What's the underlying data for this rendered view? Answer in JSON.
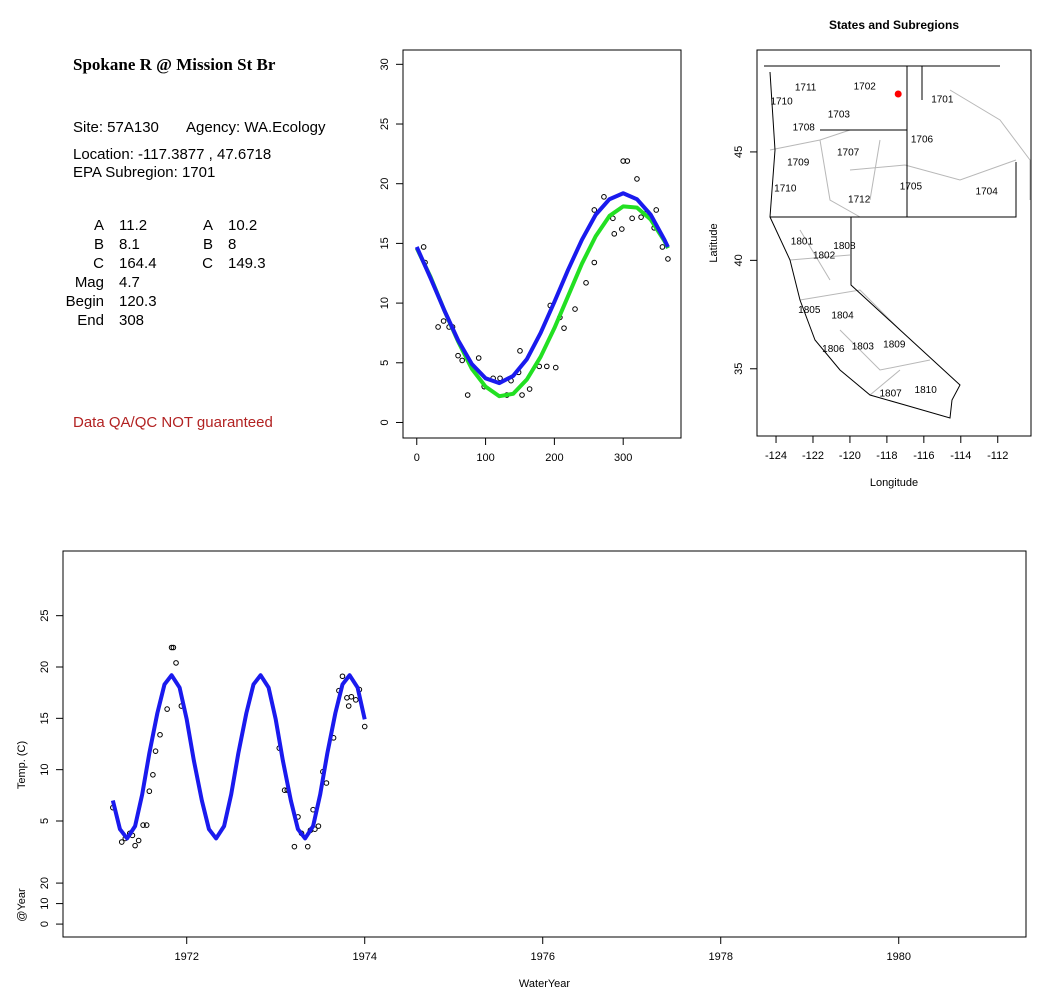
{
  "info": {
    "title": "Spokane R @ Mission St Br",
    "site": "Site: 57A130",
    "agency": "Agency: WA.Ecology",
    "location": "Location: -117.3877 , 47.6718",
    "subregion": "EPA Subregion: 1701",
    "params": [
      [
        "A",
        "11.2",
        "A",
        "10.2"
      ],
      [
        "B",
        "8.1",
        "B",
        "8"
      ],
      [
        "C",
        "164.4",
        "C",
        "149.3"
      ],
      [
        "Mag",
        "4.7"
      ],
      [
        "Begin",
        "120.3"
      ],
      [
        "End",
        "308"
      ]
    ],
    "note": "Data QA/QC NOT guaranteed"
  },
  "chart_data": [
    {
      "type": "scatter",
      "xlim": [
        -20,
        384
      ],
      "ylim": [
        -1.3,
        31.2
      ],
      "xticks": [
        0,
        100,
        200,
        300
      ],
      "yticks": [
        0,
        5,
        10,
        15,
        20,
        25,
        30
      ],
      "series": [
        {
          "kind": "points",
          "color": "#000000",
          "x": [
            10,
            12,
            31,
            39,
            47,
            52,
            60,
            66,
            74,
            90,
            98,
            111,
            121,
            131,
            137,
            148,
            150,
            153,
            164,
            178,
            189,
            194,
            202,
            208,
            214,
            230,
            246,
            258,
            258,
            272,
            285,
            287,
            298,
            300,
            306,
            313,
            320,
            326,
            335,
            345,
            348,
            357,
            365
          ],
          "values": [
            14.7,
            13.4,
            8.0,
            8.5,
            8.0,
            8.0,
            5.6,
            5.2,
            2.3,
            5.4,
            3.0,
            3.7,
            3.7,
            2.3,
            3.5,
            4.2,
            6.0,
            2.3,
            2.8,
            4.7,
            4.7,
            9.8,
            4.6,
            8.8,
            7.9,
            9.5,
            11.7,
            13.4,
            17.8,
            18.9,
            17.1,
            15.8,
            16.2,
            21.9,
            21.9,
            17.1,
            20.4,
            17.2,
            17.6,
            16.3,
            17.8,
            14.7,
            13.7
          ]
        },
        {
          "kind": "line",
          "color": "#22e022",
          "x": [
            0,
            20,
            40,
            60,
            80,
            100,
            120,
            140,
            160,
            180,
            200,
            220,
            240,
            260,
            280,
            300,
            320,
            340,
            360,
            365
          ],
          "values": [
            14.6,
            12.2,
            9.4,
            6.8,
            4.5,
            3.0,
            2.2,
            2.4,
            3.6,
            5.5,
            7.9,
            10.6,
            13.3,
            15.6,
            17.3,
            18.1,
            18.0,
            17.0,
            15.2,
            14.6
          ]
        },
        {
          "kind": "line",
          "color": "#1a1aee",
          "x": [
            0,
            20,
            40,
            60,
            80,
            100,
            120,
            140,
            160,
            180,
            200,
            220,
            240,
            260,
            280,
            300,
            320,
            340,
            360,
            365
          ],
          "values": [
            14.7,
            12.1,
            9.4,
            6.9,
            4.9,
            3.7,
            3.3,
            3.9,
            5.3,
            7.5,
            10.1,
            12.8,
            15.3,
            17.4,
            18.7,
            19.2,
            18.7,
            17.4,
            15.3,
            14.7
          ]
        }
      ]
    },
    {
      "type": "map",
      "title": "States and Subregions",
      "xlabel": "Longitude",
      "ylabel": "Latitude",
      "xlim": [
        -125.03,
        -110.2
      ],
      "ylim": [
        31.9,
        49.7
      ],
      "xticks": [
        -124,
        -122,
        -120,
        -118,
        -116,
        -114,
        -112
      ],
      "yticks": [
        35,
        40,
        45
      ],
      "regions": {
        "labels": [
          "1702",
          "1711",
          "1710",
          "1701",
          "1703",
          "1708",
          "1706",
          "1707",
          "1709",
          "1710",
          "1705",
          "1704",
          "1712",
          "1801",
          "1808",
          "1802",
          "1805",
          "1804",
          "1806",
          "1803",
          "1809",
          "1807",
          "1810"
        ],
        "x": [
          -119.2,
          -122.4,
          -123.7,
          -115.0,
          -120.6,
          -122.5,
          -116.1,
          -120.1,
          -122.8,
          -123.5,
          -116.7,
          -112.6,
          -119.5,
          -122.6,
          -120.3,
          -121.4,
          -122.2,
          -120.4,
          -120.9,
          -119.3,
          -117.6,
          -117.8,
          -115.9
        ],
        "y": [
          48.0,
          47.95,
          47.3,
          47.4,
          46.7,
          46.1,
          45.55,
          44.95,
          44.5,
          43.3,
          43.4,
          43.15,
          42.8,
          40.85,
          40.65,
          40.2,
          37.7,
          37.45,
          35.9,
          36.0,
          36.1,
          33.85,
          34.0
        ]
      },
      "site": {
        "x": -117.3877,
        "y": 47.6718,
        "color": "#ff0000"
      }
    },
    {
      "type": "line",
      "xlabel": "WaterYear",
      "ylabel": "Temp. (C)",
      "y2label": "@Year",
      "xlim": [
        1970.61,
        1981.43
      ],
      "ylim": [
        -6.3,
        31.3
      ],
      "y2lim": [
        -6.3,
        182
      ],
      "xticks": [
        1972,
        1974,
        1976,
        1978,
        1980
      ],
      "yticks": [
        5,
        10,
        15,
        20,
        25
      ],
      "y2ticks": [
        0,
        10,
        20
      ],
      "series": [
        {
          "kind": "points",
          "color": "#000000",
          "x": [
            1971.17,
            1971.27,
            1971.31,
            1971.36,
            1971.39,
            1971.42,
            1971.46,
            1971.51,
            1971.55,
            1971.58,
            1971.62,
            1971.65,
            1971.7,
            1971.78,
            1971.83,
            1971.85,
            1971.88,
            1971.94,
            1973.04,
            1973.1,
            1973.13,
            1973.21,
            1973.25,
            1973.29,
            1973.36,
            1973.39,
            1973.42,
            1973.44,
            1973.48,
            1973.53,
            1973.57,
            1973.65,
            1973.71,
            1973.75,
            1973.8,
            1973.82,
            1973.85,
            1973.9,
            1973.94,
            1974.0
          ],
          "values": [
            6.3,
            2.95,
            3.3,
            3.8,
            3.6,
            2.6,
            3.1,
            4.6,
            4.6,
            7.9,
            9.5,
            11.8,
            13.4,
            15.9,
            21.9,
            21.9,
            20.4,
            16.2,
            12.1,
            8.0,
            8.0,
            2.5,
            5.4,
            3.8,
            2.5,
            4.1,
            6.1,
            4.2,
            4.5,
            9.8,
            8.7,
            13.1,
            17.7,
            19.1,
            17.0,
            16.2,
            17.1,
            16.8,
            17.8,
            14.2
          ]
        },
        {
          "kind": "line",
          "color": "#1a1aee",
          "x": [
            1971.17,
            1971.25,
            1971.33,
            1971.42,
            1971.5,
            1971.58,
            1971.67,
            1971.75,
            1971.83,
            1971.92,
            1972.0,
            1972.08,
            1972.17,
            1972.25,
            1972.33,
            1972.42,
            1972.5,
            1972.58,
            1972.67,
            1972.75,
            1972.83,
            1972.92,
            1973.0,
            1973.08,
            1973.17,
            1973.25,
            1973.33,
            1973.42,
            1973.5,
            1973.58,
            1973.67,
            1973.75,
            1973.83,
            1973.92,
            1974.0
          ],
          "values": [
            7.0,
            4.2,
            3.3,
            4.5,
            7.6,
            11.6,
            15.5,
            18.3,
            19.2,
            18.0,
            14.9,
            10.9,
            7.0,
            4.2,
            3.3,
            4.5,
            7.6,
            11.6,
            15.5,
            18.3,
            19.2,
            18.0,
            14.9,
            10.9,
            7.0,
            4.2,
            3.3,
            4.5,
            7.6,
            11.6,
            15.5,
            18.3,
            19.2,
            18.0,
            14.9
          ]
        }
      ]
    }
  ]
}
